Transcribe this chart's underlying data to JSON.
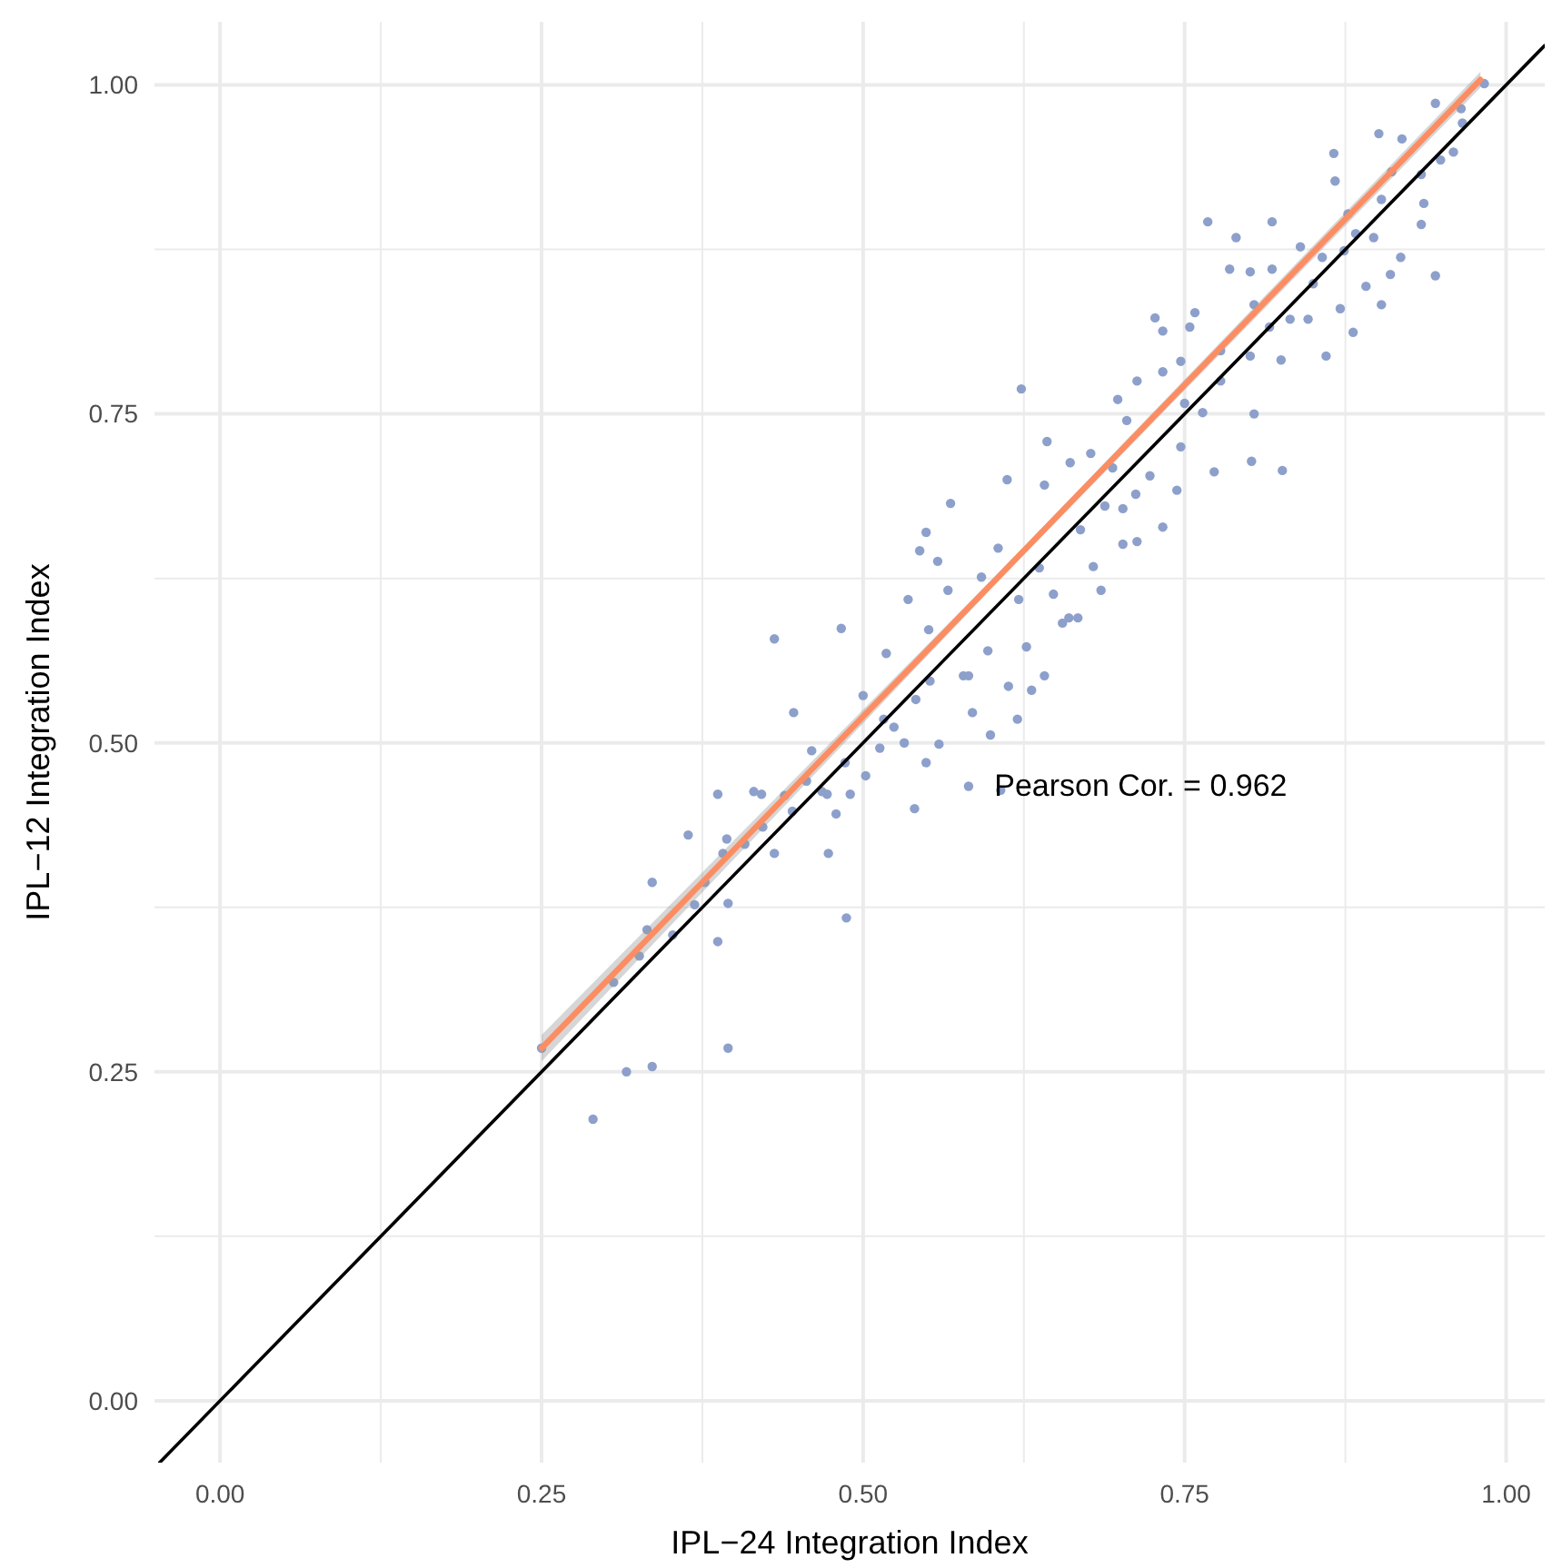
{
  "chart_data": {
    "type": "scatter",
    "xlabel": "IPL−24 Integration Index",
    "ylabel": "IPL−12 Integration Index",
    "xlim": [
      -0.051,
      1.03
    ],
    "ylim": [
      -0.047,
      1.048
    ],
    "xticks": [
      {
        "value": 0,
        "label": "0.00"
      },
      {
        "value": 0.125,
        "label": null
      },
      {
        "value": 0.25,
        "label": "0.25"
      },
      {
        "value": 0.375,
        "label": null
      },
      {
        "value": 0.5,
        "label": "0.50"
      },
      {
        "value": 0.625,
        "label": null
      },
      {
        "value": 0.75,
        "label": "0.75"
      },
      {
        "value": 0.875,
        "label": null
      },
      {
        "value": 1,
        "label": "1.00"
      }
    ],
    "yticks": [
      {
        "value": 0,
        "label": "0.00"
      },
      {
        "value": 0.125,
        "label": null
      },
      {
        "value": 0.25,
        "label": "0.25"
      },
      {
        "value": 0.375,
        "label": null
      },
      {
        "value": 0.5,
        "label": "0.50"
      },
      {
        "value": 0.625,
        "label": null
      },
      {
        "value": 0.75,
        "label": "0.75"
      },
      {
        "value": 0.875,
        "label": null
      },
      {
        "value": 1,
        "label": "1.00"
      }
    ],
    "grid": true,
    "annotations": [
      {
        "text": "Pearson Cor. = 0.962",
        "x": 0.602,
        "y": 0.468
      }
    ],
    "series": [
      {
        "marker": "circle",
        "color": "#8da0cb",
        "x": [
          0.29,
          0.316,
          0.336,
          0.395,
          0.306,
          0.326,
          0.332,
          0.336,
          0.387,
          0.395,
          0.391,
          0.431,
          0.446,
          0.431,
          0.473,
          0.487,
          0.445,
          0.472,
          0.364,
          0.387,
          0.415,
          0.46,
          0.483,
          0.516,
          0.532,
          0.486,
          0.5,
          0.518,
          0.535,
          0.551,
          0.559,
          0.582,
          0.582,
          0.607,
          0.599,
          0.62,
          0.631,
          0.641,
          0.655,
          0.648,
          0.623,
          0.605,
          0.592,
          0.566,
          0.558,
          0.544,
          0.549,
          0.568,
          0.612,
          0.641,
          0.643,
          0.661,
          0.669,
          0.688,
          0.705,
          0.702,
          0.712,
          0.723,
          0.747,
          0.733,
          0.727,
          0.758,
          0.785,
          0.79,
          0.801,
          0.818,
          0.801,
          0.747,
          0.713,
          0.698,
          0.694,
          0.677,
          0.764,
          0.778,
          0.778,
          0.816,
          0.825,
          0.826,
          0.802,
          0.846,
          0.85,
          0.857,
          0.874,
          0.877,
          0.867,
          0.903,
          0.911,
          0.919,
          0.945,
          0.966,
          0.959,
          0.949,
          0.936,
          0.918,
          0.91,
          0.903,
          0.881,
          0.871,
          0.891,
          0.84,
          0.818,
          0.866,
          0.901,
          0.983,
          0.965,
          0.934,
          0.945,
          0.934,
          0.768,
          0.754,
          0.773,
          0.702,
          0.679,
          0.66,
          0.637,
          0.621,
          0.597,
          0.578,
          0.552,
          0.541,
          0.524,
          0.513,
          0.502,
          0.49,
          0.479,
          0.468,
          0.456,
          0.439,
          0.422,
          0.408,
          0.394,
          0.377,
          0.369,
          0.352,
          0.25,
          0.421,
          0.54,
          0.549,
          0.585,
          0.613,
          0.627,
          0.667,
          0.685,
          0.713,
          0.733,
          0.744,
          0.75,
          0.804,
          0.86,
          0.883,
          0.897,
          0.733,
          0.804,
          0.832
        ],
        "values": [
          0.214,
          0.25,
          0.254,
          0.268,
          0.318,
          0.338,
          0.358,
          0.394,
          0.349,
          0.378,
          0.416,
          0.579,
          0.523,
          0.416,
          0.416,
          0.367,
          0.448,
          0.461,
          0.43,
          0.461,
          0.463,
          0.494,
          0.587,
          0.518,
          0.5,
          0.485,
          0.536,
          0.568,
          0.609,
          0.586,
          0.499,
          0.551,
          0.467,
          0.464,
          0.506,
          0.518,
          0.54,
          0.551,
          0.591,
          0.613,
          0.769,
          0.648,
          0.626,
          0.616,
          0.638,
          0.646,
          0.66,
          0.682,
          0.7,
          0.696,
          0.729,
          0.713,
          0.662,
          0.68,
          0.745,
          0.678,
          0.689,
          0.703,
          0.725,
          0.782,
          0.823,
          0.827,
          0.86,
          0.884,
          0.858,
          0.86,
          0.794,
          0.79,
          0.775,
          0.761,
          0.709,
          0.72,
          0.751,
          0.775,
          0.798,
          0.816,
          0.791,
          0.707,
          0.714,
          0.822,
          0.849,
          0.869,
          0.874,
          0.902,
          0.927,
          0.913,
          0.934,
          0.959,
          0.986,
          0.971,
          0.949,
          0.943,
          0.91,
          0.869,
          0.856,
          0.833,
          0.812,
          0.83,
          0.847,
          0.877,
          0.896,
          0.948,
          0.963,
          1.001,
          0.982,
          0.932,
          0.855,
          0.894,
          0.896,
          0.816,
          0.706,
          0.651,
          0.634,
          0.595,
          0.633,
          0.609,
          0.57,
          0.551,
          0.547,
          0.533,
          0.512,
          0.496,
          0.475,
          0.461,
          0.446,
          0.463,
          0.471,
          0.46,
          0.436,
          0.423,
          0.427,
          0.394,
          0.377,
          0.354,
          0.268,
          0.461,
          0.45,
          0.485,
          0.523,
          0.543,
          0.573,
          0.595,
          0.616,
          0.653,
          0.664,
          0.692,
          0.758,
          0.75,
          0.794,
          0.887,
          0.884,
          0.813,
          0.833,
          0.822
        ]
      },
      {
        "type": "line",
        "color": "#fc8d62",
        "x": [
          0.25,
          0.615,
          0.98
        ],
        "values": [
          0.268,
          0.636,
          1.004
        ],
        "lower": [
          0.258,
          0.633,
          0.998
        ],
        "upper": [
          0.278,
          0.639,
          1.01
        ]
      },
      {
        "type": "line",
        "color": "#000000",
        "x": [
          -0.047,
          1.03
        ],
        "values": [
          -0.047,
          1.03
        ]
      }
    ]
  }
}
